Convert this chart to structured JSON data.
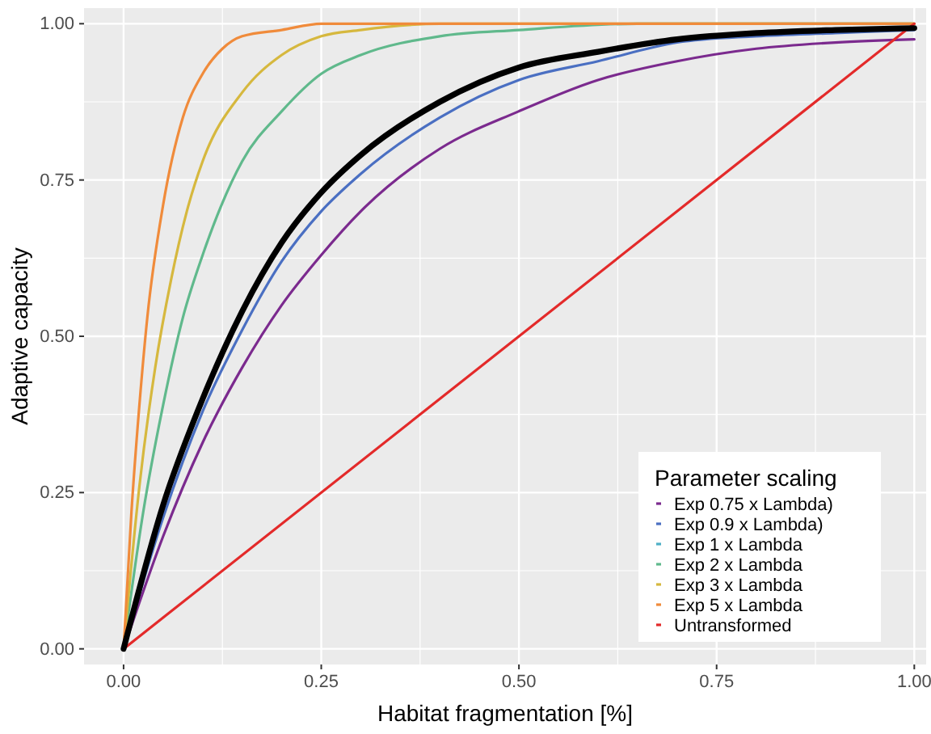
{
  "chart_data": {
    "type": "line",
    "xlabel": "Habitat fragmentation [%]",
    "ylabel": "Adaptive capacity",
    "legend_title": "Parameter scaling",
    "xlim": [
      -0.05,
      1.015
    ],
    "ylim": [
      -0.025,
      1.025
    ],
    "xticks": [
      {
        "value": 0,
        "label": "0.00"
      },
      {
        "value": 0.25,
        "label": "0.25"
      },
      {
        "value": 0.5,
        "label": "0.50"
      },
      {
        "value": 0.75,
        "label": "0.75"
      },
      {
        "value": 1,
        "label": "1.00"
      }
    ],
    "yticks": [
      {
        "value": 0,
        "label": "0.00"
      },
      {
        "value": 0.25,
        "label": "0.25"
      },
      {
        "value": 0.5,
        "label": "0.50"
      },
      {
        "value": 0.75,
        "label": "0.75"
      },
      {
        "value": 1,
        "label": "1.00"
      }
    ],
    "grid": true,
    "legend": "bottom right",
    "marker": "none",
    "line_style": "solid",
    "series": [
      {
        "name": "Exp 0.75 x Lambda)",
        "color": "#7b2a8e",
        "x": [
          0,
          0.05,
          0.1,
          0.15,
          0.2,
          0.25,
          0.3,
          0.4,
          0.5,
          0.6,
          0.7,
          0.8,
          0.9,
          1
        ],
        "values": [
          0,
          0.18,
          0.33,
          0.45,
          0.55,
          0.63,
          0.7,
          0.8,
          0.86,
          0.91,
          0.94,
          0.96,
          0.97,
          0.975
        ]
      },
      {
        "name": "Exp 0.9 x Lambda)",
        "color": "#4a6fc2",
        "x": [
          0,
          0.05,
          0.1,
          0.15,
          0.2,
          0.25,
          0.3,
          0.4,
          0.5,
          0.6,
          0.7,
          0.8,
          0.9,
          1
        ],
        "values": [
          0,
          0.21,
          0.38,
          0.51,
          0.62,
          0.7,
          0.76,
          0.85,
          0.91,
          0.94,
          0.97,
          0.98,
          0.985,
          0.99
        ]
      },
      {
        "name": "Exp 1 x Lambda",
        "color": "#4fb0c6"
      },
      {
        "name": "Exp 2 x Lambda",
        "color": "#60b98c",
        "x": [
          0,
          0.025,
          0.05,
          0.075,
          0.1,
          0.15,
          0.2,
          0.25,
          0.3,
          0.4,
          0.5,
          0.65,
          1
        ],
        "values": [
          0,
          0.22,
          0.39,
          0.53,
          0.63,
          0.78,
          0.86,
          0.92,
          0.95,
          0.98,
          0.99,
          1,
          1
        ]
      },
      {
        "name": "Exp 3 x Lambda",
        "color": "#d6b83e",
        "x": [
          0,
          0.02,
          0.04,
          0.06,
          0.08,
          0.1,
          0.15,
          0.2,
          0.25,
          0.3,
          0.4,
          1
        ],
        "values": [
          0,
          0.26,
          0.45,
          0.59,
          0.7,
          0.78,
          0.89,
          0.95,
          0.98,
          0.99,
          1,
          1
        ]
      },
      {
        "name": "Exp 5 x Lambda",
        "color": "#f08b3b",
        "x": [
          0,
          0.01,
          0.02,
          0.03,
          0.05,
          0.075,
          0.1,
          0.125,
          0.15,
          0.2,
          0.25,
          1
        ],
        "values": [
          0,
          0.22,
          0.39,
          0.53,
          0.71,
          0.85,
          0.92,
          0.96,
          0.98,
          0.99,
          1,
          1
        ]
      },
      {
        "name": "Untransformed",
        "color": "#e32a2a",
        "x": [
          0,
          1
        ],
        "values": [
          0,
          1
        ]
      },
      {
        "color": "#000000",
        "x": [
          0,
          0.05,
          0.1,
          0.15,
          0.2,
          0.25,
          0.3,
          0.4,
          0.5,
          0.6,
          0.7,
          0.8,
          0.9,
          1
        ],
        "values": [
          0,
          0.23,
          0.4,
          0.54,
          0.65,
          0.73,
          0.79,
          0.875,
          0.93,
          0.955,
          0.975,
          0.985,
          0.99,
          0.993
        ]
      }
    ]
  }
}
